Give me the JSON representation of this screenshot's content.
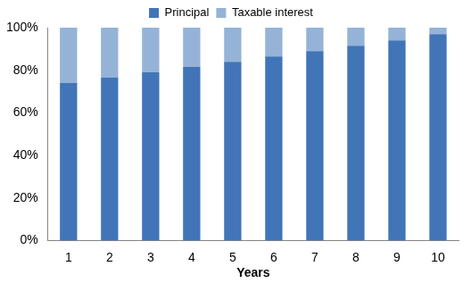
{
  "chart_data": {
    "type": "bar",
    "stacked": true,
    "grid": false,
    "legend": "top",
    "x_label": "Years",
    "categories": [
      "1",
      "2",
      "3",
      "4",
      "5",
      "6",
      "7",
      "8",
      "9",
      "10"
    ],
    "series": [
      {
        "name": "Principal",
        "color": "#4175b8",
        "values": [
          74,
          76.5,
          79,
          81.5,
          84,
          86.5,
          89,
          91.5,
          94,
          97
        ]
      },
      {
        "name": "Taxable interest",
        "color": "#95b3d7",
        "values": [
          26,
          23.5,
          21,
          18.5,
          16,
          13.5,
          11,
          8.5,
          6,
          3
        ]
      }
    ],
    "ylim": [
      0,
      100
    ],
    "yticks": [
      {
        "value": 0,
        "label": "0%"
      },
      {
        "value": 20,
        "label": "20%"
      },
      {
        "value": 40,
        "label": "40%"
      },
      {
        "value": 60,
        "label": "60%"
      },
      {
        "value": 80,
        "label": "80%"
      },
      {
        "value": 100,
        "label": "100%"
      }
    ]
  }
}
